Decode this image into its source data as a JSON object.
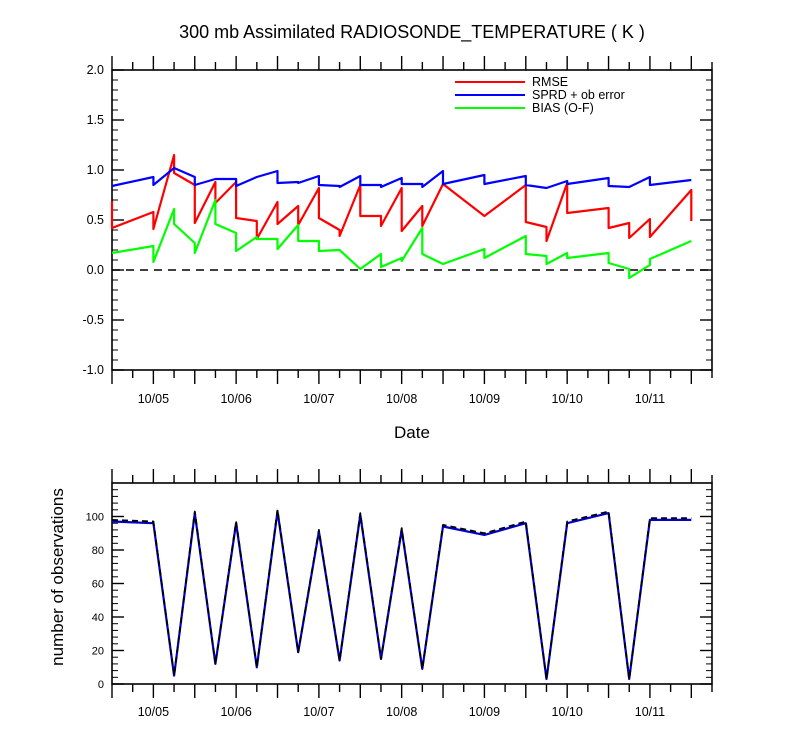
{
  "chart_data": [
    {
      "type": "line",
      "title": "300 mb Assimilated RADIOSONDE_TEMPERATURE ( K )",
      "xlabel": "Date",
      "ylabel": "",
      "ylim": [
        -1.0,
        2.0
      ],
      "yticks": [
        "2.0",
        "1.5",
        "1.0",
        "0.5",
        "0.0",
        "-0.5",
        "-1.0"
      ],
      "xlim": [
        "10/04 12Z",
        "10/11 18Z"
      ],
      "xtick_labels": [
        "10/05",
        "10/06",
        "10/07",
        "10/08",
        "10/09",
        "10/10",
        "10/11"
      ],
      "zero_line": true,
      "legend_position": "top-right",
      "colors": {
        "RMSE": "#ff0000",
        "SPRD + ob error": "#0000ff",
        "BIAS (O-F)": "#00ff00"
      },
      "series": [
        {
          "name": "RMSE",
          "color": "#ff0000",
          "points": [
            [
              "10/04 12Z",
              0.69
            ],
            [
              "10/04 12Z",
              0.42
            ],
            [
              "10/05 00Z",
              0.58
            ],
            [
              "10/05 00Z",
              0.41
            ],
            [
              "10/05 06Z",
              1.15
            ],
            [
              "10/05 06Z",
              0.97
            ],
            [
              "10/05 12Z",
              0.85
            ],
            [
              "10/05 12Z",
              0.47
            ],
            [
              "10/05 18Z",
              0.88
            ],
            [
              "10/05 18Z",
              0.67
            ],
            [
              "10/06 00Z",
              0.88
            ],
            [
              "10/06 00Z",
              0.52
            ],
            [
              "10/06 06Z",
              0.49
            ],
            [
              "10/06 06Z",
              0.31
            ],
            [
              "10/06 12Z",
              0.68
            ],
            [
              "10/06 12Z",
              0.46
            ],
            [
              "10/06 18Z",
              0.64
            ],
            [
              "10/06 18Z",
              0.45
            ],
            [
              "10/07 00Z",
              0.82
            ],
            [
              "10/07 00Z",
              0.52
            ],
            [
              "10/07 06Z",
              0.4
            ],
            [
              "10/07 06Z",
              0.34
            ],
            [
              "10/07 12Z",
              0.85
            ],
            [
              "10/07 12Z",
              0.54
            ],
            [
              "10/07 18Z",
              0.54
            ],
            [
              "10/07 18Z",
              0.44
            ],
            [
              "10/08 00Z",
              0.82
            ],
            [
              "10/08 00Z",
              0.39
            ],
            [
              "10/08 06Z",
              0.64
            ],
            [
              "10/08 06Z",
              0.44
            ],
            [
              "10/08 12Z",
              0.86
            ],
            [
              "10/09 00Z",
              0.54
            ],
            [
              "10/09 12Z",
              0.85
            ],
            [
              "10/09 12Z",
              0.48
            ],
            [
              "10/09 18Z",
              0.43
            ],
            [
              "10/09 18Z",
              0.29
            ],
            [
              "10/10 00Z",
              0.87
            ],
            [
              "10/10 00Z",
              0.57
            ],
            [
              "10/10 12Z",
              0.62
            ],
            [
              "10/10 12Z",
              0.42
            ],
            [
              "10/10 18Z",
              0.47
            ],
            [
              "10/10 18Z",
              0.32
            ],
            [
              "10/11 00Z",
              0.51
            ],
            [
              "10/11 00Z",
              0.33
            ],
            [
              "10/11 12Z",
              0.8
            ],
            [
              "10/11 12Z",
              0.49
            ]
          ]
        },
        {
          "name": "SPRD + ob error",
          "color": "#0000ff",
          "points": [
            [
              "10/04 12Z",
              0.84
            ],
            [
              "10/05 00Z",
              0.93
            ],
            [
              "10/05 00Z",
              0.85
            ],
            [
              "10/05 06Z",
              1.02
            ],
            [
              "10/05 12Z",
              0.93
            ],
            [
              "10/05 12Z",
              0.85
            ],
            [
              "10/05 18Z",
              0.91
            ],
            [
              "10/06 00Z",
              0.91
            ],
            [
              "10/06 00Z",
              0.84
            ],
            [
              "10/06 06Z",
              0.93
            ],
            [
              "10/06 12Z",
              0.99
            ],
            [
              "10/06 12Z",
              0.87
            ],
            [
              "10/06 18Z",
              0.88
            ],
            [
              "10/06 18Z",
              0.87
            ],
            [
              "10/07 00Z",
              0.94
            ],
            [
              "10/07 00Z",
              0.85
            ],
            [
              "10/07 06Z",
              0.84
            ],
            [
              "10/07 06Z",
              0.83
            ],
            [
              "10/07 12Z",
              0.94
            ],
            [
              "10/07 12Z",
              0.85
            ],
            [
              "10/07 18Z",
              0.85
            ],
            [
              "10/07 18Z",
              0.83
            ],
            [
              "10/08 00Z",
              0.92
            ],
            [
              "10/08 00Z",
              0.86
            ],
            [
              "10/08 06Z",
              0.86
            ],
            [
              "10/08 06Z",
              0.83
            ],
            [
              "10/08 12Z",
              0.99
            ],
            [
              "10/08 12Z",
              0.86
            ],
            [
              "10/09 00Z",
              0.95
            ],
            [
              "10/09 00Z",
              0.86
            ],
            [
              "10/09 12Z",
              0.94
            ],
            [
              "10/09 12Z",
              0.85
            ],
            [
              "10/09 18Z",
              0.82
            ],
            [
              "10/10 00Z",
              0.89
            ],
            [
              "10/10 00Z",
              0.86
            ],
            [
              "10/10 12Z",
              0.92
            ],
            [
              "10/10 12Z",
              0.84
            ],
            [
              "10/10 18Z",
              0.83
            ],
            [
              "10/11 00Z",
              0.93
            ],
            [
              "10/11 00Z",
              0.85
            ],
            [
              "10/11 12Z",
              0.9
            ]
          ]
        },
        {
          "name": "BIAS (O-F)",
          "color": "#00ff00",
          "points": [
            [
              "10/04 12Z",
              0.17
            ],
            [
              "10/05 00Z",
              0.24
            ],
            [
              "10/05 00Z",
              0.08
            ],
            [
              "10/05 06Z",
              0.61
            ],
            [
              "10/05 06Z",
              0.46
            ],
            [
              "10/05 12Z",
              0.27
            ],
            [
              "10/05 12Z",
              0.17
            ],
            [
              "10/05 18Z",
              0.7
            ],
            [
              "10/05 18Z",
              0.46
            ],
            [
              "10/06 00Z",
              0.37
            ],
            [
              "10/06 00Z",
              0.19
            ],
            [
              "10/06 06Z",
              0.33
            ],
            [
              "10/06 06Z",
              0.31
            ],
            [
              "10/06 12Z",
              0.31
            ],
            [
              "10/06 12Z",
              0.21
            ],
            [
              "10/06 18Z",
              0.45
            ],
            [
              "10/06 18Z",
              0.29
            ],
            [
              "10/07 00Z",
              0.29
            ],
            [
              "10/07 00Z",
              0.19
            ],
            [
              "10/07 06Z",
              0.2
            ],
            [
              "10/07 12Z",
              0.01
            ],
            [
              "10/07 18Z",
              0.16
            ],
            [
              "10/07 18Z",
              0.03
            ],
            [
              "10/08 00Z",
              0.12
            ],
            [
              "10/08 00Z",
              0.09
            ],
            [
              "10/08 06Z",
              0.42
            ],
            [
              "10/08 06Z",
              0.16
            ],
            [
              "10/08 12Z",
              0.06
            ],
            [
              "10/09 00Z",
              0.21
            ],
            [
              "10/09 00Z",
              0.12
            ],
            [
              "10/09 12Z",
              0.34
            ],
            [
              "10/09 12Z",
              0.16
            ],
            [
              "10/09 18Z",
              0.14
            ],
            [
              "10/09 18Z",
              0.06
            ],
            [
              "10/10 00Z",
              0.17
            ],
            [
              "10/10 00Z",
              0.12
            ],
            [
              "10/10 12Z",
              0.17
            ],
            [
              "10/10 12Z",
              0.07
            ],
            [
              "10/10 18Z",
              0.01
            ],
            [
              "10/10 18Z",
              -0.08
            ],
            [
              "10/11 00Z",
              0.05
            ],
            [
              "10/11 00Z",
              0.11
            ],
            [
              "10/11 12Z",
              0.29
            ]
          ]
        }
      ]
    },
    {
      "type": "line",
      "title": "",
      "xlabel": "",
      "ylabel": "number of observations",
      "ylim": [
        0,
        120
      ],
      "yticks": [
        "0",
        "20",
        "40",
        "60",
        "80",
        "100"
      ],
      "xlim": [
        "10/04 12Z",
        "10/11 18Z"
      ],
      "xtick_labels": [
        "10/05",
        "10/06",
        "10/07",
        "10/08",
        "10/09",
        "10/10",
        "10/11"
      ],
      "series": [
        {
          "style": "solid",
          "color": "#0000cc",
          "points": [
            [
              "10/04 12Z",
              97
            ],
            [
              "10/05 00Z",
              96
            ],
            [
              "10/05 06Z",
              5
            ],
            [
              "10/05 12Z",
              102
            ],
            [
              "10/05 18Z",
              12
            ],
            [
              "10/06 00Z",
              96
            ],
            [
              "10/06 06Z",
              10
            ],
            [
              "10/06 12Z",
              103
            ],
            [
              "10/06 18Z",
              19
            ],
            [
              "10/07 00Z",
              91
            ],
            [
              "10/07 06Z",
              14
            ],
            [
              "10/07 12Z",
              101
            ],
            [
              "10/07 18Z",
              15
            ],
            [
              "10/08 00Z",
              92
            ],
            [
              "10/08 06Z",
              9
            ],
            [
              "10/08 12Z",
              94
            ],
            [
              "10/09 00Z",
              89
            ],
            [
              "10/09 12Z",
              96
            ],
            [
              "10/09 18Z",
              3
            ],
            [
              "10/10 00Z",
              96
            ],
            [
              "10/10 12Z",
              102
            ],
            [
              "10/10 18Z",
              3
            ],
            [
              "10/11 00Z",
              98
            ],
            [
              "10/11 12Z",
              98
            ]
          ]
        },
        {
          "style": "dashed",
          "color": "#000000",
          "points": [
            [
              "10/04 12Z",
              98
            ],
            [
              "10/05 00Z",
              97
            ],
            [
              "10/05 06Z",
              5
            ],
            [
              "10/05 12Z",
              103
            ],
            [
              "10/05 18Z",
              12
            ],
            [
              "10/06 00Z",
              97
            ],
            [
              "10/06 06Z",
              10
            ],
            [
              "10/06 12Z",
              104
            ],
            [
              "10/06 18Z",
              19
            ],
            [
              "10/07 00Z",
              92
            ],
            [
              "10/07 06Z",
              14
            ],
            [
              "10/07 12Z",
              102
            ],
            [
              "10/07 18Z",
              15
            ],
            [
              "10/08 00Z",
              93
            ],
            [
              "10/08 06Z",
              9
            ],
            [
              "10/08 12Z",
              95
            ],
            [
              "10/09 00Z",
              90
            ],
            [
              "10/09 12Z",
              97
            ],
            [
              "10/09 18Z",
              3
            ],
            [
              "10/10 00Z",
              97
            ],
            [
              "10/10 12Z",
              103
            ],
            [
              "10/10 18Z",
              3
            ],
            [
              "10/11 00Z",
              99
            ],
            [
              "10/11 12Z",
              99
            ]
          ]
        }
      ]
    }
  ]
}
